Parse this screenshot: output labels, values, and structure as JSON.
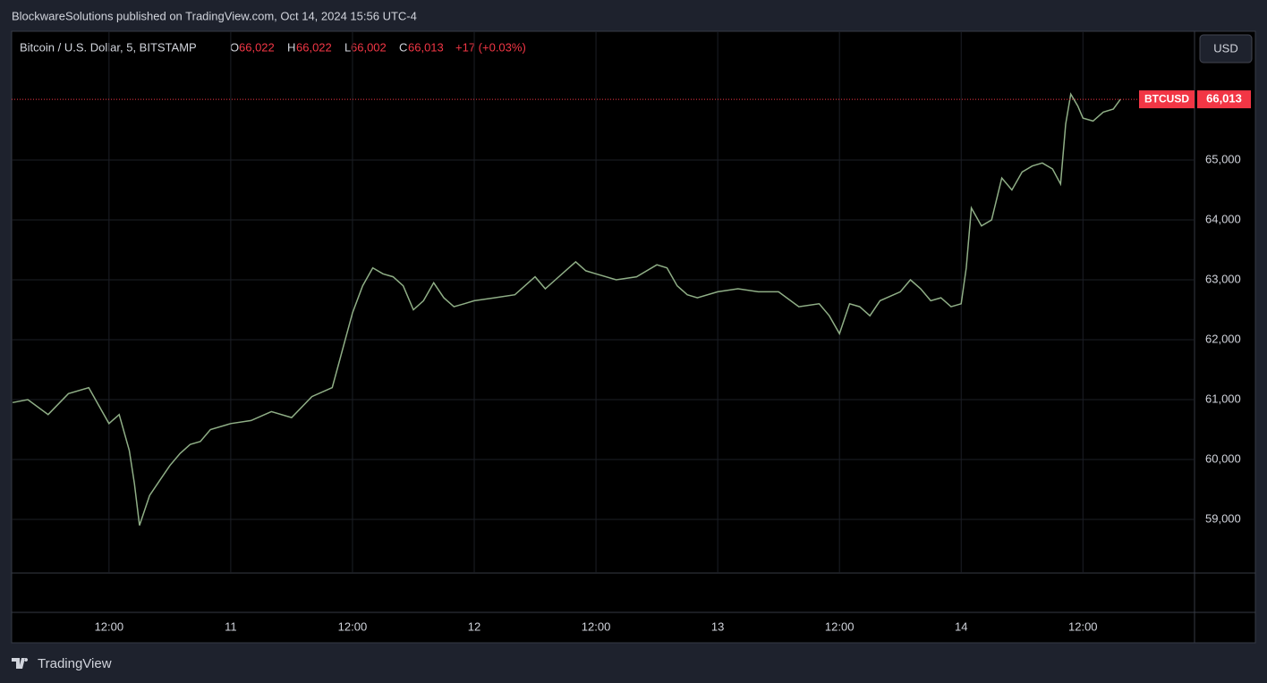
{
  "header": {
    "publisher": "BlockwareSolutions published on TradingView.com, Oct 14, 2024 15:56 UTC-4"
  },
  "footer": {
    "brand": "TradingView"
  },
  "chart_data": {
    "type": "line",
    "symbol": "Bitcoin / U.S. Dollar, 5, BITSTAMP",
    "ohlc": {
      "o_label": "O",
      "open": "66,022",
      "h_label": "H",
      "high": "66,022",
      "l_label": "L",
      "low": "66,002",
      "c_label": "C",
      "close": "66,013",
      "change": "+17 (+0.03%)"
    },
    "currency": "USD",
    "last_price_name": "BTCUSD",
    "color": "#8fae86",
    "last_color": "#f23645",
    "grid": true,
    "xlim": [
      2.4,
      119
    ],
    "ylim": [
      58104,
      67149
    ],
    "xticks": [
      {
        "value": 12,
        "label": "12:00"
      },
      {
        "value": 24,
        "label": "11"
      },
      {
        "value": 36,
        "label": "12:00"
      },
      {
        "value": 48,
        "label": "12"
      },
      {
        "value": 60,
        "label": "12:00"
      },
      {
        "value": 72,
        "label": "13"
      },
      {
        "value": 84,
        "label": "12:00"
      },
      {
        "value": 96,
        "label": "14"
      },
      {
        "value": 108,
        "label": "12:00"
      }
    ],
    "yticks": [
      {
        "value": 59000,
        "label": "59,000"
      },
      {
        "value": 60000,
        "label": "60,000"
      },
      {
        "value": 61000,
        "label": "61,000"
      },
      {
        "value": 62000,
        "label": "62,000"
      },
      {
        "value": 63000,
        "label": "63,000"
      },
      {
        "value": 64000,
        "label": "64,000"
      },
      {
        "value": 65000,
        "label": "65,000"
      }
    ],
    "x": [
      2.5,
      4,
      6,
      8,
      10,
      11,
      12,
      13,
      14,
      14.5,
      15,
      16,
      17,
      18,
      19,
      20,
      21,
      22,
      24,
      26,
      28,
      30,
      32,
      34,
      36,
      37,
      38,
      39,
      40,
      41,
      42,
      43,
      44,
      45,
      46,
      47,
      48,
      50,
      52,
      54,
      55,
      56,
      57,
      58,
      59,
      60,
      62,
      64,
      66,
      67,
      68,
      69,
      70,
      72,
      74,
      76,
      78,
      80,
      82,
      83,
      84,
      85,
      86,
      87,
      88,
      90,
      91,
      92,
      93,
      94,
      95,
      96,
      96.5,
      97,
      98,
      99,
      100,
      101,
      102,
      103,
      104,
      105,
      105.8,
      106.3,
      106.8,
      107.5,
      108,
      109,
      110,
      111,
      111.7
    ],
    "values": [
      60950,
      61000,
      60750,
      61100,
      61200,
      60900,
      60600,
      60750,
      60150,
      59600,
      58900,
      59400,
      59650,
      59900,
      60100,
      60250,
      60300,
      60500,
      60600,
      60650,
      60800,
      60700,
      61050,
      61200,
      62450,
      62900,
      63200,
      63100,
      63050,
      62900,
      62500,
      62650,
      62950,
      62700,
      62550,
      62600,
      62650,
      62700,
      62750,
      63050,
      62850,
      63000,
      63150,
      63300,
      63150,
      63100,
      63000,
      63050,
      63250,
      63200,
      62900,
      62750,
      62700,
      62800,
      62850,
      62800,
      62800,
      62550,
      62600,
      62400,
      62100,
      62600,
      62550,
      62400,
      62650,
      62800,
      63000,
      62850,
      62650,
      62700,
      62550,
      62600,
      63200,
      64200,
      63900,
      64000,
      64700,
      64500,
      64800,
      64900,
      64950,
      64850,
      64600,
      65600,
      66100,
      65900,
      65700,
      65650,
      65800,
      65850,
      66013
    ],
    "value_labels": {
      "90": "66,013"
    }
  }
}
